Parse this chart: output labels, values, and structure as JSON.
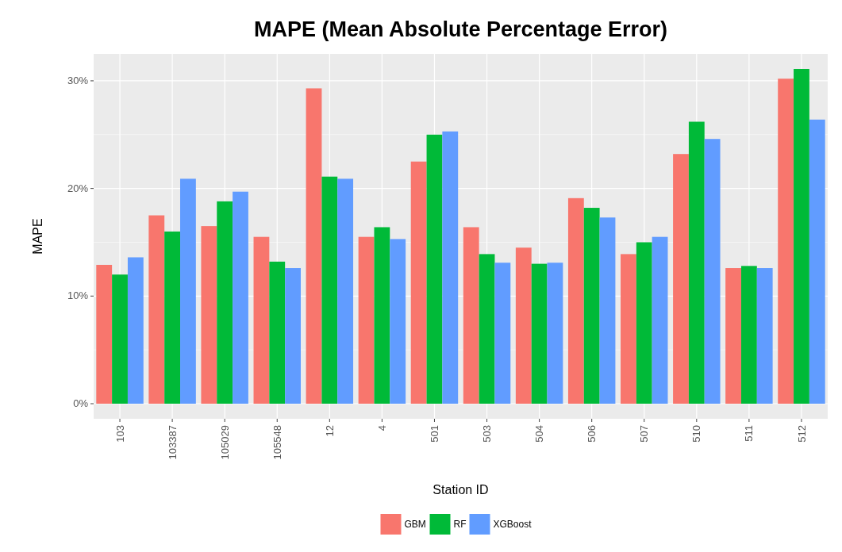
{
  "chart_data": {
    "type": "bar",
    "title": "MAPE (Mean Absolute Percentage Error)",
    "xlabel": "Station ID",
    "ylabel": "MAPE",
    "categories": [
      "103",
      "103387",
      "105029",
      "105548",
      "12",
      "4",
      "501",
      "503",
      "504",
      "506",
      "507",
      "510",
      "511",
      "512"
    ],
    "series": [
      {
        "name": "GBM",
        "color": "#f8766d",
        "values": [
          12.9,
          17.5,
          16.5,
          15.5,
          29.3,
          15.5,
          22.5,
          16.4,
          14.5,
          19.1,
          13.9,
          23.2,
          12.6,
          30.2
        ]
      },
      {
        "name": "RF",
        "color": "#00ba38",
        "values": [
          12.0,
          16.0,
          18.8,
          13.2,
          21.1,
          16.4,
          25.0,
          13.9,
          13.0,
          18.2,
          15.0,
          26.2,
          12.8,
          31.1
        ]
      },
      {
        "name": "XGBoost",
        "color": "#619cff",
        "values": [
          13.6,
          20.9,
          19.7,
          12.6,
          20.9,
          15.3,
          25.3,
          13.1,
          13.1,
          17.3,
          15.5,
          24.6,
          12.6,
          26.4
        ]
      }
    ],
    "ylim": [
      -1.4,
      32.5
    ],
    "yticks": [
      {
        "value": 0,
        "label": "0%"
      },
      {
        "value": 10,
        "label": "10%"
      },
      {
        "value": 20,
        "label": "20%"
      },
      {
        "value": 30,
        "label": "30%"
      }
    ],
    "grid": true,
    "legend": "bottom"
  }
}
